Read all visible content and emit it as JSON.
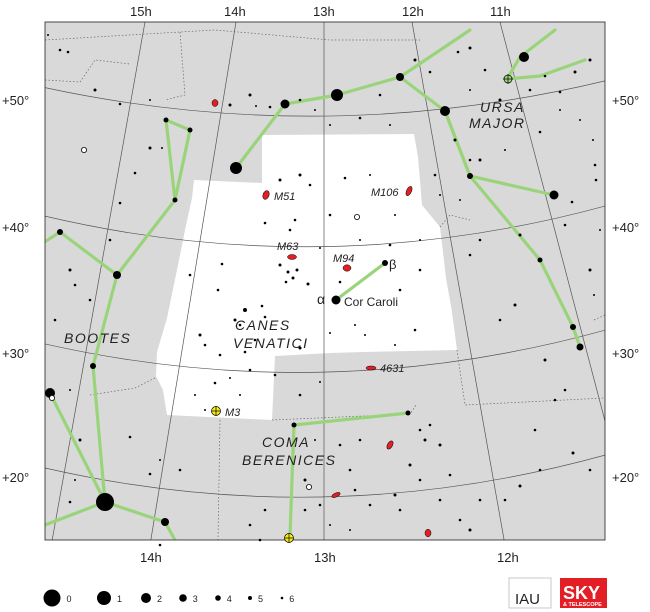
{
  "ra_labels_top": [
    "15h",
    "14h",
    "13h",
    "12h",
    "11h"
  ],
  "ra_labels_bottom": [
    "14h",
    "13h",
    "12h"
  ],
  "dec_labels_left": [
    "+50°",
    "+40°",
    "+30°",
    "+20°"
  ],
  "dec_labels_right": [
    "+50°",
    "+40°",
    "+30°",
    "+20°"
  ],
  "constellations": {
    "main": [
      "CANES",
      "VENATICI"
    ],
    "neighbors": [
      {
        "lines": [
          "URSA",
          "MAJOR"
        ]
      },
      {
        "lines": [
          "BOOTES"
        ]
      },
      {
        "lines": [
          "COMA",
          "BERENICES"
        ]
      }
    ]
  },
  "objects": [
    "M51",
    "M106",
    "M63",
    "M94",
    "4631",
    "M3"
  ],
  "stars_named": {
    "alpha": "α",
    "beta": "β",
    "cor_caroli": "Cor Caroli"
  },
  "magnitude_legend": [
    "0",
    "1",
    "2",
    "3",
    "4",
    "5",
    "6"
  ],
  "logos": {
    "iau": "IAU",
    "sky": "SKY",
    "sky_sub": "& TELESCOPE"
  },
  "colors": {
    "background": "#d9d9da",
    "constellation": "#ffffff",
    "galaxy": "#e31e24",
    "cluster": "#f6eb14",
    "figure_line": "#9ad47a",
    "sky_logo": "#e31e24"
  }
}
